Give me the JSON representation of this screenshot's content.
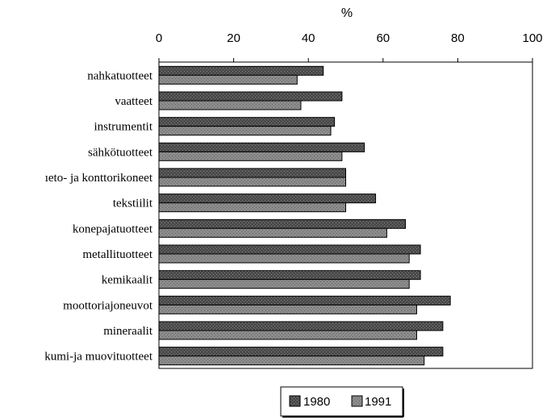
{
  "chart_data": {
    "type": "bar",
    "orientation": "horizontal",
    "title": "",
    "xlabel": "%",
    "ylabel": "",
    "xlim": [
      0,
      100
    ],
    "x_ticks": [
      0,
      20,
      40,
      60,
      80,
      100
    ],
    "x_axis_position": "top",
    "grid": false,
    "legend_position": "bottom",
    "categories": [
      "nahkatuotteet",
      "vaatteet",
      "instrumentit",
      "sähkötuotteet",
      "ıeto- ja konttorikoneet",
      "tekstiilit",
      "konepajatuotteet",
      "metallituotteet",
      "kemikaalit",
      "moottoriajoneuvot",
      "mineraalit",
      "kumi-ja muovituotteet"
    ],
    "series": [
      {
        "name": "1980",
        "color": "#555555",
        "values": [
          44,
          49,
          47,
          55,
          50,
          58,
          66,
          70,
          70,
          78,
          76,
          76
        ]
      },
      {
        "name": "1991",
        "color": "#8e8e8e",
        "values": [
          37,
          38,
          46,
          49,
          50,
          50,
          61,
          67,
          67,
          69,
          69,
          71
        ]
      }
    ]
  }
}
